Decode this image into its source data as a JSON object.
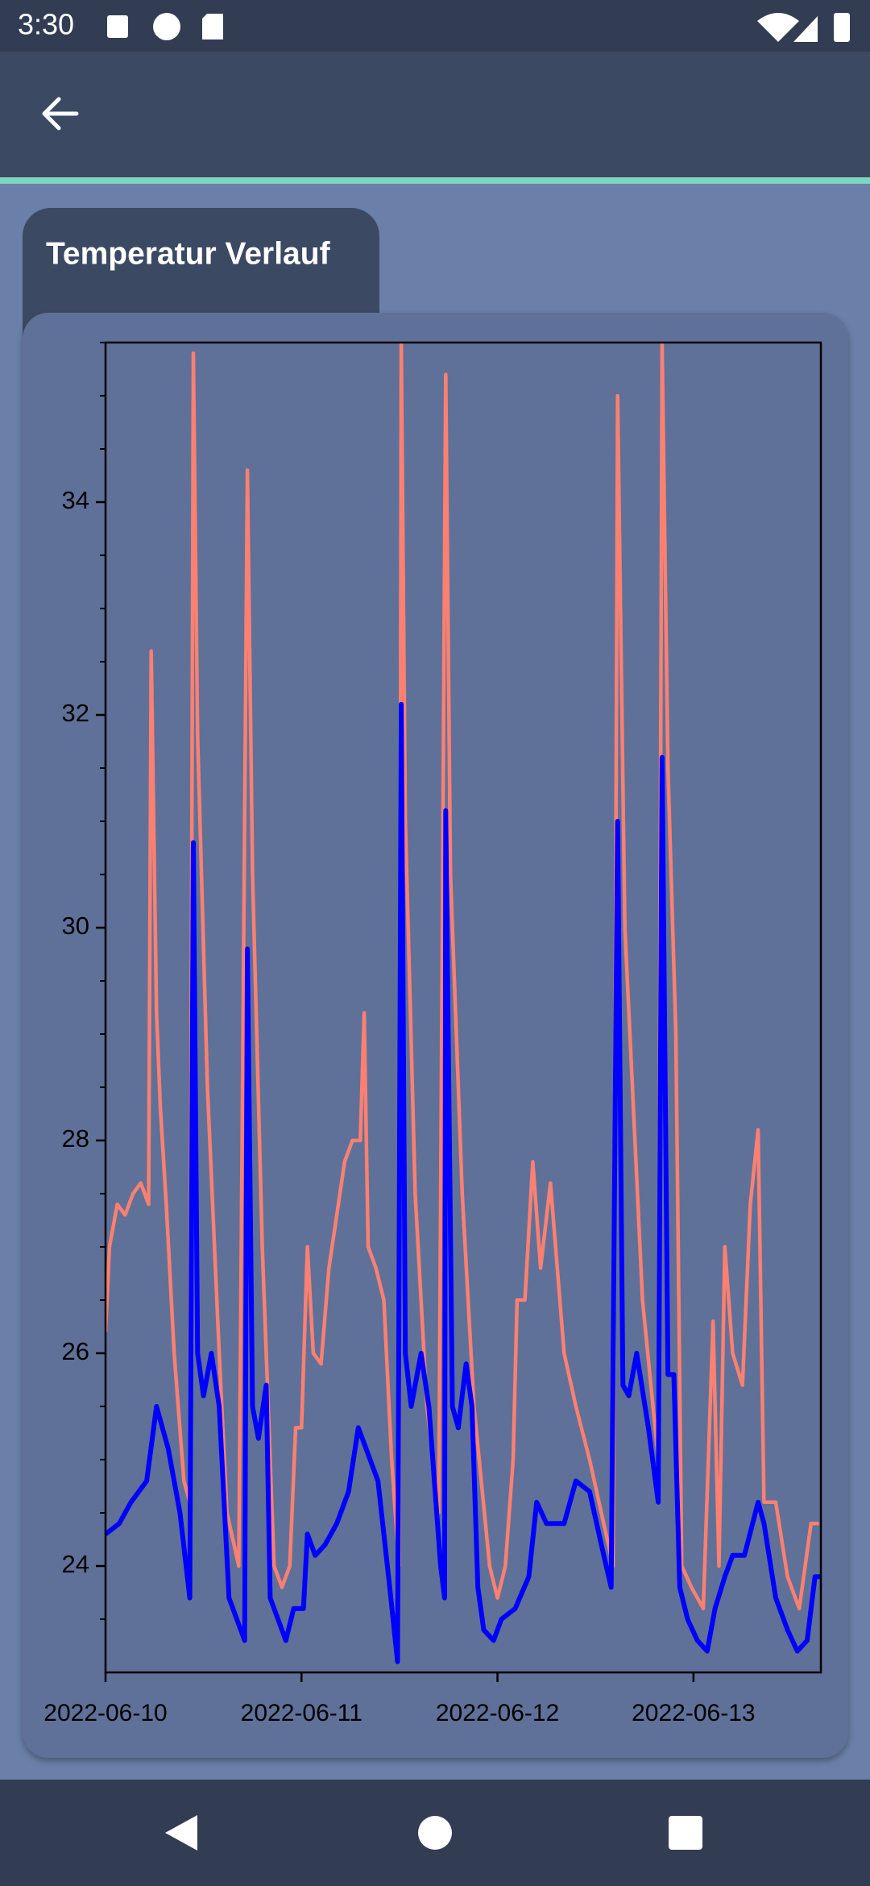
{
  "status_bar": {
    "time": "3:30"
  },
  "screen": {
    "tab_title": "Temperatur Verlauf"
  },
  "chart_data": {
    "type": "line",
    "xlim": [
      0,
      3.65
    ],
    "xticks": [
      {
        "value": 0,
        "label": "2022-06-10"
      },
      {
        "value": 1,
        "label": "2022-06-11"
      },
      {
        "value": 2,
        "label": "2022-06-12"
      },
      {
        "value": 3,
        "label": "2022-06-13"
      }
    ],
    "ylim": [
      23,
      35.5
    ],
    "yticks": [
      24,
      26,
      28,
      30,
      32,
      34
    ],
    "yminorticks": [
      23.5,
      24.5,
      25,
      25.5,
      26.5,
      27,
      27.5,
      28.5,
      29,
      29.5,
      30.5,
      31,
      31.5,
      32.5,
      33,
      33.5,
      34.5,
      35,
      35.5
    ],
    "series": [
      {
        "color": "#fa8072",
        "x": [
          0,
          0.02,
          0.06,
          0.1,
          0.14,
          0.18,
          0.22,
          0.233,
          0.26,
          0.28,
          0.31,
          0.35,
          0.4,
          0.43,
          0.448,
          0.47,
          0.52,
          0.58,
          0.62,
          0.68,
          0.724,
          0.75,
          0.8,
          0.84,
          0.86,
          0.9,
          0.94,
          0.97,
          1.0,
          1.03,
          1.06,
          1.1,
          1.14,
          1.18,
          1.22,
          1.26,
          1.3,
          1.32,
          1.34,
          1.38,
          1.42,
          1.46,
          1.497,
          1.509,
          1.53,
          1.58,
          1.64,
          1.7,
          1.736,
          1.76,
          1.82,
          1.88,
          1.96,
          2.0,
          2.04,
          2.08,
          2.1,
          2.14,
          2.18,
          2.22,
          2.27,
          2.34,
          2.4,
          2.47,
          2.59,
          2.613,
          2.65,
          2.74,
          2.82,
          2.84,
          2.87,
          2.91,
          2.94,
          2.99,
          3.05,
          3.1,
          3.13,
          3.16,
          3.2,
          3.25,
          3.29,
          3.33,
          3.36,
          3.42,
          3.48,
          3.54,
          3.6,
          3.64
        ],
        "values": [
          26.2,
          27.0,
          27.4,
          27.3,
          27.5,
          27.6,
          27.4,
          32.6,
          29.2,
          28.3,
          27.4,
          26.0,
          24.8,
          24.6,
          35.4,
          31.8,
          28.5,
          26.0,
          24.5,
          24.0,
          34.3,
          30.5,
          27.0,
          25.0,
          24.0,
          23.8,
          24.0,
          25.3,
          25.3,
          27.0,
          26.0,
          25.9,
          26.8,
          27.3,
          27.8,
          28.0,
          28.0,
          29.2,
          27.0,
          26.8,
          26.5,
          25.0,
          24.0,
          35.5,
          31.0,
          27.5,
          25.5,
          24.5,
          35.2,
          30.5,
          27.5,
          25.5,
          24.0,
          23.7,
          24.0,
          25.0,
          26.5,
          26.5,
          27.8,
          26.8,
          27.6,
          26.0,
          25.5,
          25.0,
          24.0,
          35.0,
          30.0,
          26.5,
          25.0,
          35.5,
          31.5,
          29.0,
          24.0,
          23.8,
          23.6,
          26.3,
          24.0,
          27.0,
          26.0,
          25.7,
          27.4,
          28.1,
          24.6,
          24.6,
          23.9,
          23.6,
          24.4,
          24.4
        ]
      },
      {
        "color": "#0000ff",
        "x": [
          0,
          0.07,
          0.13,
          0.21,
          0.26,
          0.32,
          0.38,
          0.43,
          0.448,
          0.47,
          0.5,
          0.54,
          0.58,
          0.63,
          0.67,
          0.71,
          0.724,
          0.75,
          0.78,
          0.82,
          0.84,
          0.88,
          0.92,
          0.96,
          1.01,
          1.03,
          1.07,
          1.12,
          1.18,
          1.24,
          1.29,
          1.33,
          1.39,
          1.45,
          1.49,
          1.509,
          1.53,
          1.56,
          1.61,
          1.65,
          1.71,
          1.73,
          1.736,
          1.77,
          1.8,
          1.84,
          1.87,
          1.9,
          1.93,
          1.98,
          2.02,
          2.09,
          2.16,
          2.2,
          2.25,
          2.34,
          2.4,
          2.47,
          2.53,
          2.58,
          2.613,
          2.64,
          2.67,
          2.71,
          2.77,
          2.82,
          2.84,
          2.87,
          2.9,
          2.93,
          2.97,
          3.02,
          3.07,
          3.11,
          3.16,
          3.2,
          3.26,
          3.33,
          3.36,
          3.42,
          3.48,
          3.53,
          3.58,
          3.62,
          3.65
        ],
        "values": [
          24.3,
          24.4,
          24.6,
          24.8,
          25.5,
          25.1,
          24.5,
          23.7,
          30.8,
          26.0,
          25.6,
          26.0,
          25.5,
          23.7,
          23.5,
          23.3,
          29.8,
          25.5,
          25.2,
          25.7,
          23.7,
          23.5,
          23.3,
          23.6,
          23.6,
          24.3,
          24.1,
          24.2,
          24.4,
          24.7,
          25.3,
          25.1,
          24.8,
          23.8,
          23.1,
          32.1,
          26.0,
          25.5,
          26.0,
          25.5,
          24.0,
          23.7,
          31.1,
          25.5,
          25.3,
          25.9,
          25.5,
          23.8,
          23.4,
          23.3,
          23.5,
          23.6,
          23.9,
          24.6,
          24.4,
          24.4,
          24.8,
          24.7,
          24.2,
          23.8,
          31.0,
          25.7,
          25.6,
          26.0,
          25.3,
          24.6,
          31.6,
          25.8,
          25.8,
          23.8,
          23.5,
          23.3,
          23.2,
          23.6,
          23.9,
          24.1,
          24.1,
          24.6,
          24.4,
          23.7,
          23.4,
          23.2,
          23.3,
          23.9,
          23.9
        ]
      }
    ]
  }
}
